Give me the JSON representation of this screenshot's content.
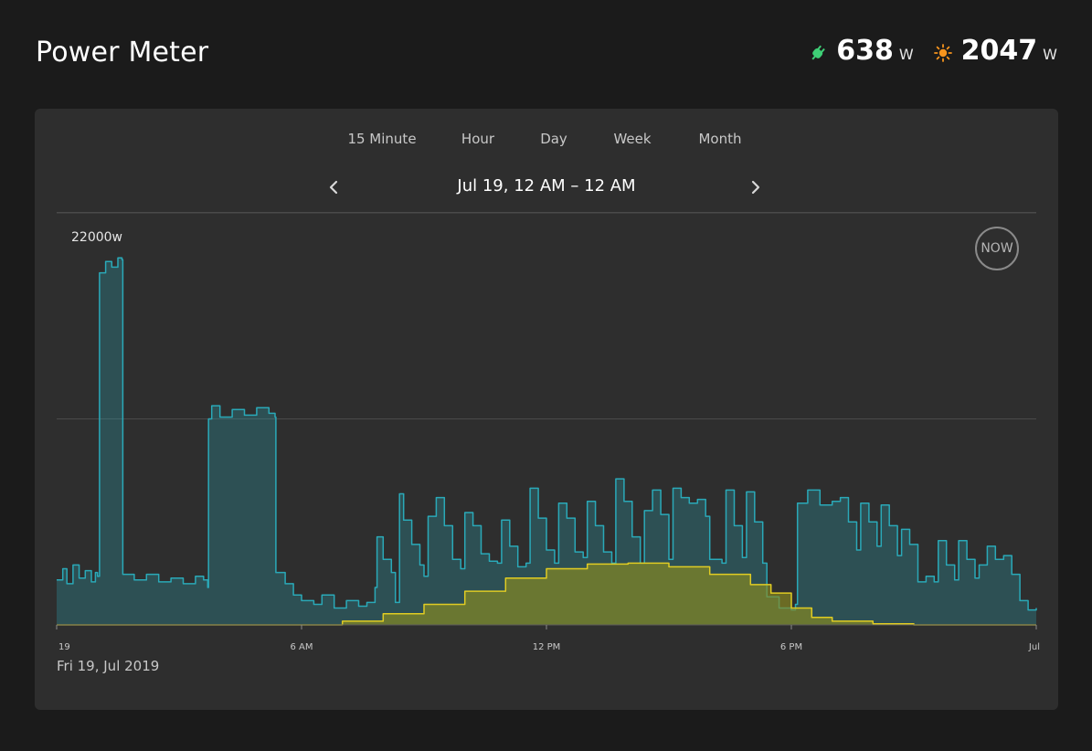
{
  "header": {
    "title": "Power Meter",
    "consumption": {
      "value": "638",
      "unit": "W",
      "color": "#3ecf76",
      "icon": "plug-icon"
    },
    "solar": {
      "value": "2047",
      "unit": "W",
      "color": "#f7941d",
      "icon": "sun-icon"
    }
  },
  "tabs": [
    {
      "label": "15 Minute",
      "active": true
    },
    {
      "label": "Hour",
      "active": false
    },
    {
      "label": "Day",
      "active": false
    },
    {
      "label": "Week",
      "active": false
    },
    {
      "label": "Month",
      "active": false
    }
  ],
  "range": {
    "label": "Jul 19, 12 AM – 12 AM",
    "prev_icon": "chevron-left-icon",
    "next_icon": "chevron-right-icon"
  },
  "now_button": "NOW",
  "date_caption": "Fri 19, Jul 2019",
  "chart_data": {
    "type": "area",
    "y_max_label": "22000w",
    "ylim": [
      0,
      22000
    ],
    "xlim_hours": [
      0,
      24
    ],
    "x_ticks": [
      {
        "hour": 0,
        "label": "19"
      },
      {
        "hour": 6,
        "label": "6 AM"
      },
      {
        "hour": 12,
        "label": "12 PM"
      },
      {
        "hour": 18,
        "label": "6 PM"
      },
      {
        "hour": 24,
        "label": "Jul"
      }
    ],
    "grid_lines_w": [
      11000,
      22000
    ],
    "series": [
      {
        "name": "consumption",
        "color": "#2aa9b8",
        "fill": "rgba(42,169,184,0.28)",
        "points": [
          [
            0,
            2400
          ],
          [
            0.15,
            3000
          ],
          [
            0.25,
            2200
          ],
          [
            0.4,
            3200
          ],
          [
            0.55,
            2500
          ],
          [
            0.7,
            2900
          ],
          [
            0.85,
            2300
          ],
          [
            0.95,
            2800
          ],
          [
            1.0,
            2600
          ],
          [
            1.05,
            18800
          ],
          [
            1.2,
            19400
          ],
          [
            1.35,
            19100
          ],
          [
            1.5,
            19600
          ],
          [
            1.6,
            19500
          ],
          [
            1.62,
            2700
          ],
          [
            1.9,
            2400
          ],
          [
            2.2,
            2700
          ],
          [
            2.5,
            2300
          ],
          [
            2.8,
            2500
          ],
          [
            3.1,
            2200
          ],
          [
            3.4,
            2600
          ],
          [
            3.6,
            2400
          ],
          [
            3.7,
            2000
          ],
          [
            3.72,
            11000
          ],
          [
            3.8,
            11700
          ],
          [
            4.0,
            11100
          ],
          [
            4.3,
            11500
          ],
          [
            4.6,
            11200
          ],
          [
            4.9,
            11600
          ],
          [
            5.2,
            11300
          ],
          [
            5.35,
            11100
          ],
          [
            5.37,
            2800
          ],
          [
            5.6,
            2200
          ],
          [
            5.8,
            1600
          ],
          [
            6.0,
            1300
          ],
          [
            6.3,
            1100
          ],
          [
            6.5,
            1600
          ],
          [
            6.8,
            900
          ],
          [
            7.1,
            1300
          ],
          [
            7.4,
            1000
          ],
          [
            7.6,
            1200
          ],
          [
            7.8,
            2000
          ],
          [
            7.85,
            4700
          ],
          [
            8.0,
            3500
          ],
          [
            8.2,
            2800
          ],
          [
            8.3,
            1200
          ],
          [
            8.4,
            7000
          ],
          [
            8.5,
            5600
          ],
          [
            8.7,
            4300
          ],
          [
            8.9,
            3200
          ],
          [
            9.0,
            2600
          ],
          [
            9.1,
            5800
          ],
          [
            9.3,
            6800
          ],
          [
            9.5,
            5300
          ],
          [
            9.7,
            3500
          ],
          [
            9.9,
            3000
          ],
          [
            10.0,
            6000
          ],
          [
            10.2,
            5300
          ],
          [
            10.4,
            3800
          ],
          [
            10.6,
            3400
          ],
          [
            10.8,
            3300
          ],
          [
            10.9,
            5600
          ],
          [
            11.1,
            4200
          ],
          [
            11.3,
            3100
          ],
          [
            11.5,
            3300
          ],
          [
            11.6,
            7300
          ],
          [
            11.8,
            5700
          ],
          [
            12.0,
            4000
          ],
          [
            12.2,
            3300
          ],
          [
            12.3,
            6500
          ],
          [
            12.5,
            5700
          ],
          [
            12.7,
            3900
          ],
          [
            12.9,
            3600
          ],
          [
            13.0,
            6600
          ],
          [
            13.2,
            5300
          ],
          [
            13.4,
            3900
          ],
          [
            13.6,
            3300
          ],
          [
            13.7,
            7800
          ],
          [
            13.9,
            6600
          ],
          [
            14.1,
            4700
          ],
          [
            14.3,
            3300
          ],
          [
            14.4,
            6100
          ],
          [
            14.6,
            7200
          ],
          [
            14.8,
            5900
          ],
          [
            15.0,
            3500
          ],
          [
            15.1,
            7300
          ],
          [
            15.3,
            6800
          ],
          [
            15.5,
            6500
          ],
          [
            15.7,
            6700
          ],
          [
            15.9,
            5800
          ],
          [
            16.0,
            3500
          ],
          [
            16.3,
            3300
          ],
          [
            16.4,
            7200
          ],
          [
            16.6,
            5300
          ],
          [
            16.8,
            3600
          ],
          [
            16.9,
            7100
          ],
          [
            17.1,
            5500
          ],
          [
            17.3,
            3300
          ],
          [
            17.4,
            1500
          ],
          [
            17.7,
            900
          ],
          [
            18.0,
            800
          ],
          [
            18.1,
            1100
          ],
          [
            18.15,
            6500
          ],
          [
            18.4,
            7200
          ],
          [
            18.7,
            6400
          ],
          [
            19.0,
            6600
          ],
          [
            19.2,
            6800
          ],
          [
            19.4,
            5500
          ],
          [
            19.6,
            4000
          ],
          [
            19.7,
            6500
          ],
          [
            19.9,
            5500
          ],
          [
            20.1,
            4200
          ],
          [
            20.2,
            6400
          ],
          [
            20.4,
            5300
          ],
          [
            20.6,
            3700
          ],
          [
            20.7,
            5100
          ],
          [
            20.9,
            4300
          ],
          [
            21.1,
            2300
          ],
          [
            21.3,
            2600
          ],
          [
            21.5,
            2300
          ],
          [
            21.6,
            4500
          ],
          [
            21.8,
            3200
          ],
          [
            22.0,
            2400
          ],
          [
            22.1,
            4500
          ],
          [
            22.3,
            3500
          ],
          [
            22.5,
            2500
          ],
          [
            22.6,
            3200
          ],
          [
            22.8,
            4200
          ],
          [
            23.0,
            3500
          ],
          [
            23.2,
            3700
          ],
          [
            23.4,
            2700
          ],
          [
            23.6,
            1300
          ],
          [
            23.8,
            800
          ],
          [
            24.0,
            900
          ]
        ]
      },
      {
        "name": "solar",
        "color": "#e0cc23",
        "fill": "rgba(140,140,30,0.65)",
        "points": [
          [
            0,
            0
          ],
          [
            6.5,
            0
          ],
          [
            7.0,
            200
          ],
          [
            8.0,
            600
          ],
          [
            9.0,
            1100
          ],
          [
            10.0,
            1800
          ],
          [
            11.0,
            2500
          ],
          [
            12.0,
            3000
          ],
          [
            13.0,
            3250
          ],
          [
            14.0,
            3300
          ],
          [
            15.0,
            3100
          ],
          [
            16.0,
            2700
          ],
          [
            17.0,
            2150
          ],
          [
            17.5,
            1700
          ],
          [
            18.0,
            900
          ],
          [
            18.5,
            400
          ],
          [
            19.0,
            200
          ],
          [
            20.0,
            60
          ],
          [
            21.0,
            0
          ],
          [
            24.0,
            0
          ]
        ]
      }
    ]
  }
}
